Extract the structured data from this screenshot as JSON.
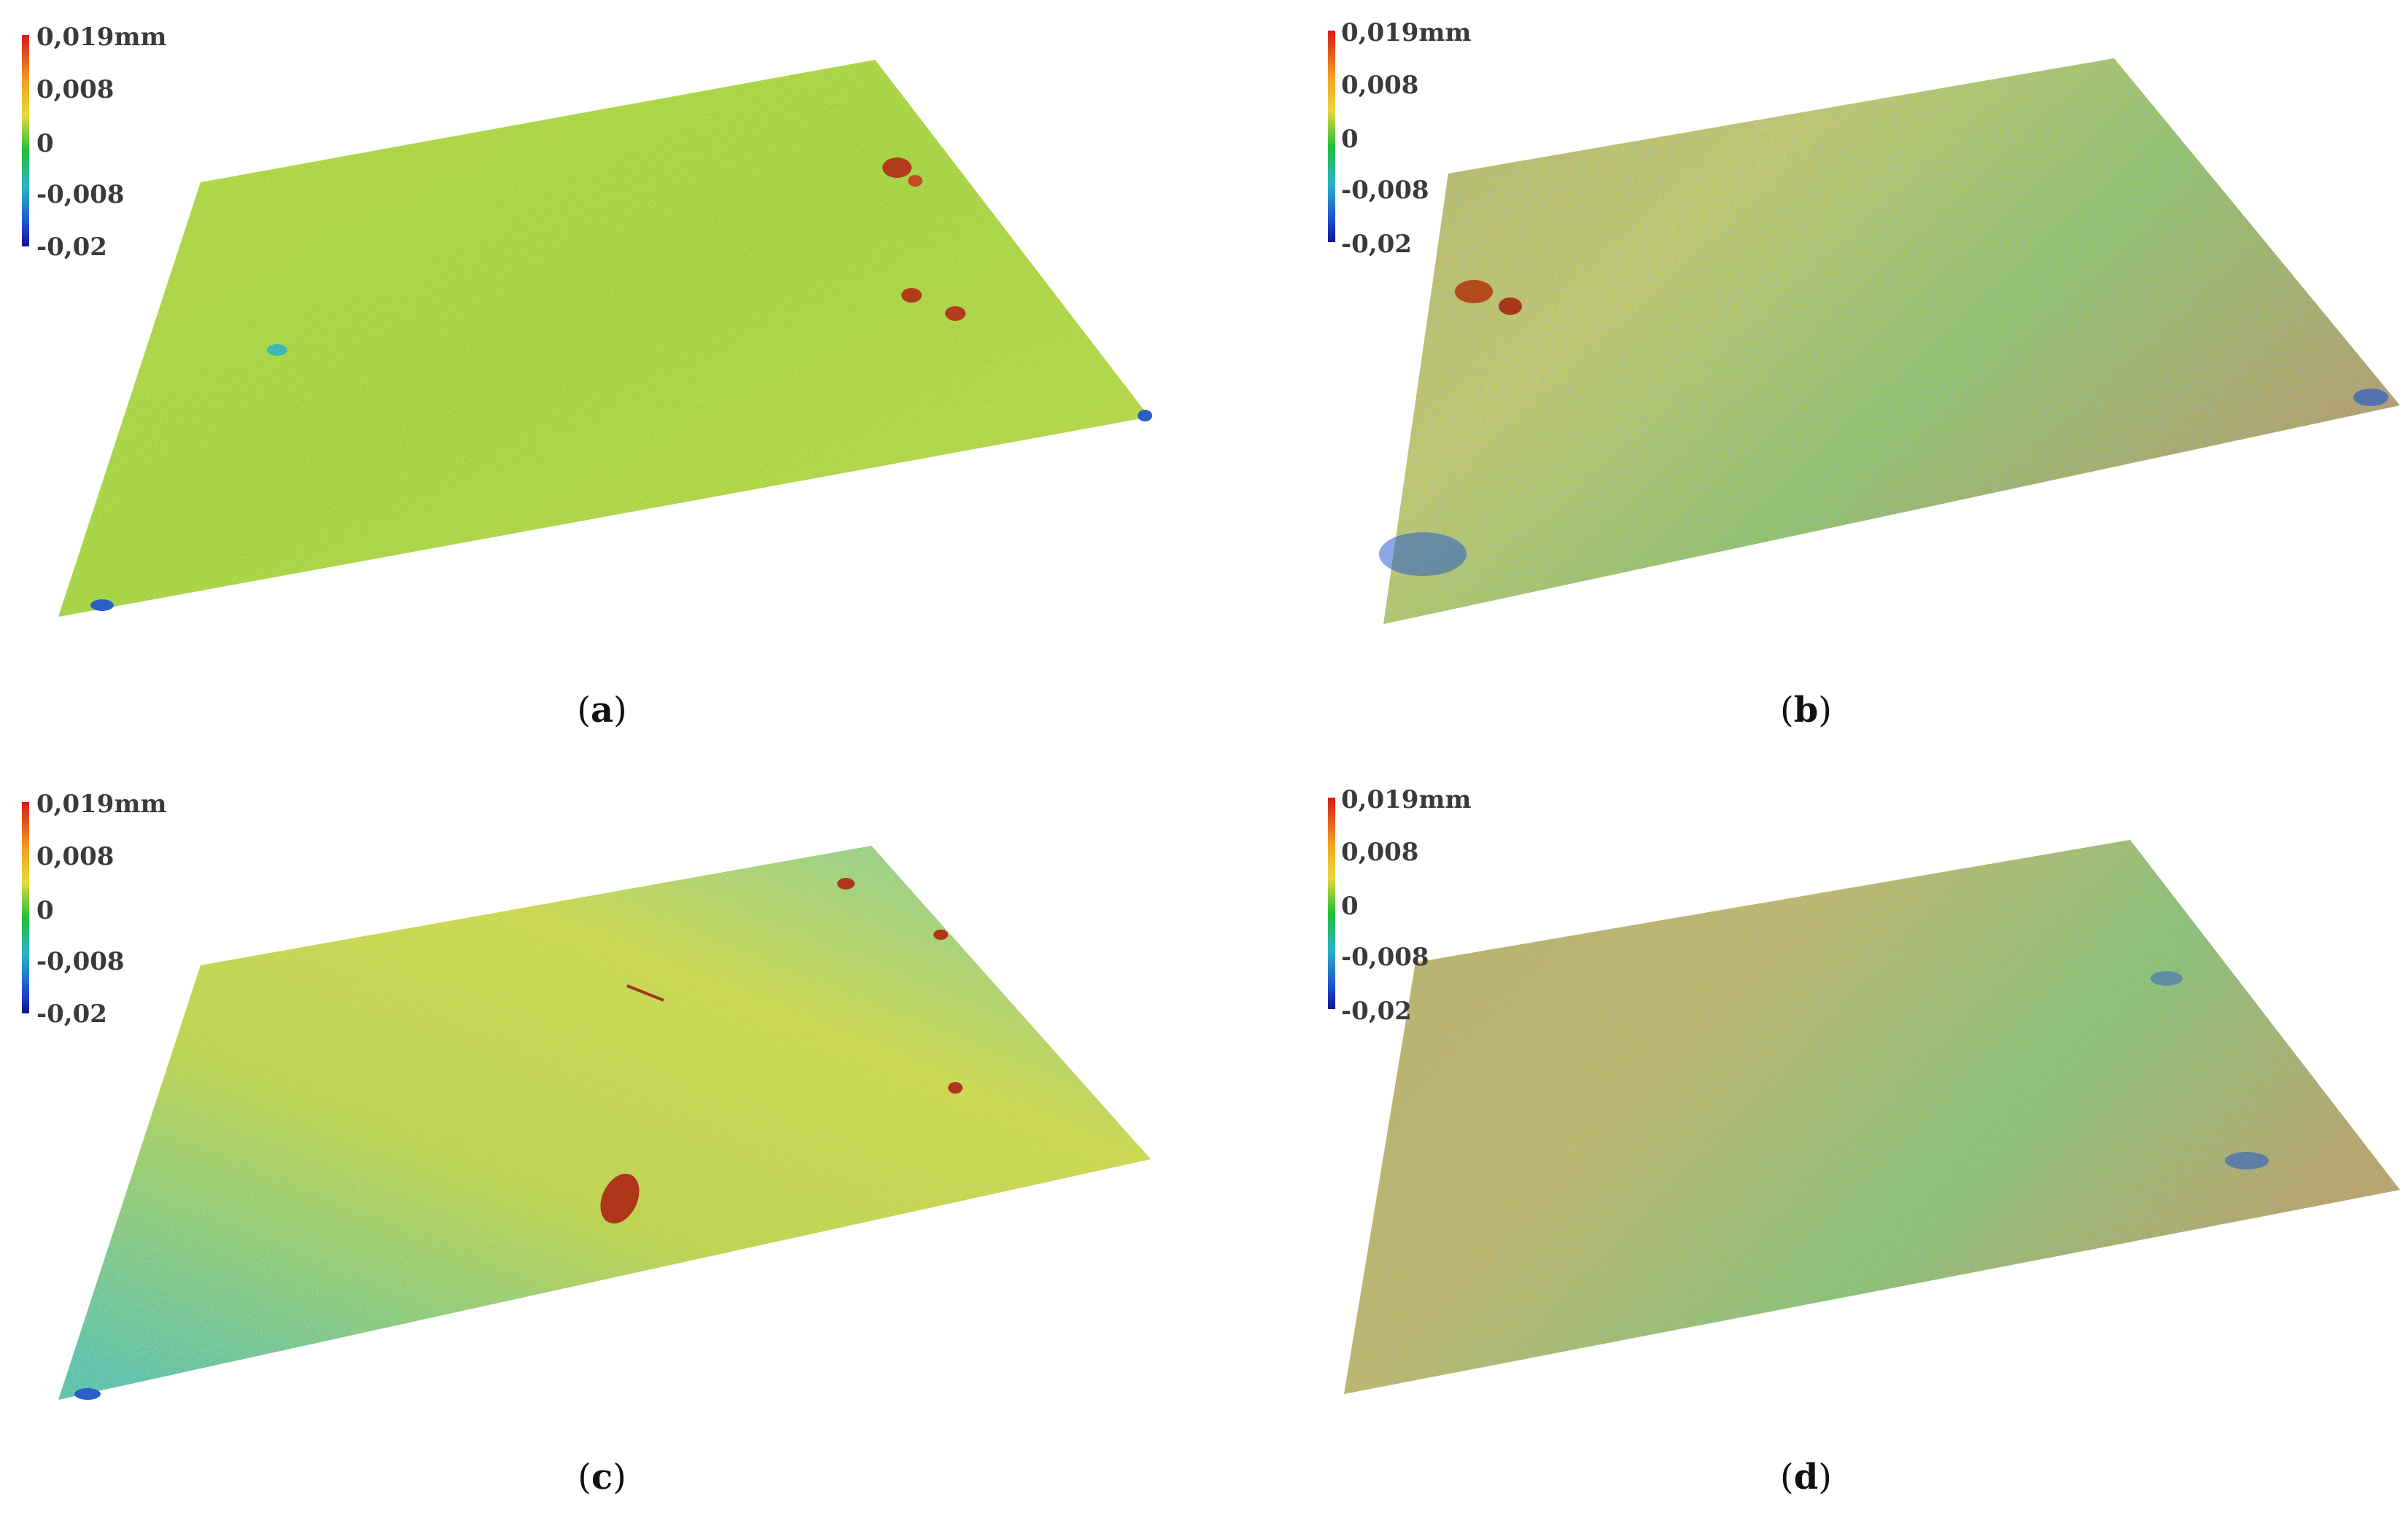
{
  "colorbar": {
    "ticks": [
      "0,019mm",
      "0,008",
      "0",
      "-0,008",
      "-0,02"
    ]
  },
  "panels": [
    {
      "id": "a",
      "label": "a",
      "dominant": "#9ccf3e"
    },
    {
      "id": "b",
      "label": "b",
      "dominant": "#c7c048"
    },
    {
      "id": "c",
      "label": "c",
      "dominant": "#b6d04a"
    },
    {
      "id": "d",
      "label": "d",
      "dominant": "#c9ae4a"
    }
  ],
  "palette": {
    "red": "#c0401c",
    "orange": "#e09a3a",
    "yellow": "#e3d64a",
    "green": "#7cc842",
    "cyan": "#3fb6b8",
    "blue": "#2a5fc8"
  }
}
